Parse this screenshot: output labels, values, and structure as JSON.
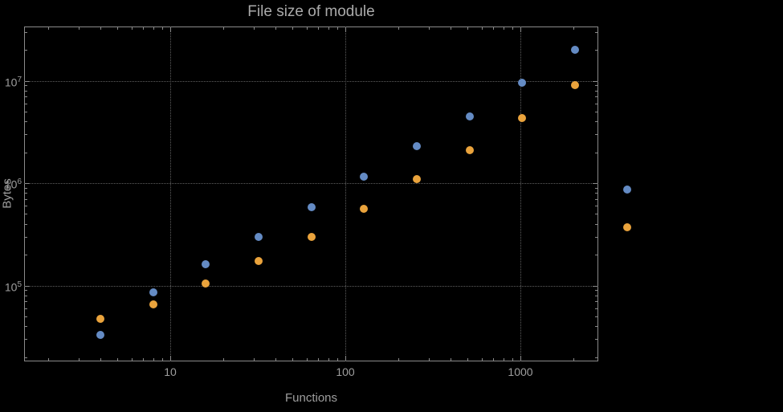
{
  "chart_data": {
    "type": "scatter",
    "title": "File size of module",
    "xlabel": "Functions",
    "ylabel": "Bytes",
    "x_scale": "log",
    "y_scale": "log",
    "grid": "major-dotted",
    "legend": "none",
    "frame": true,
    "x_ticks": [
      {
        "value": 10,
        "label": "10"
      },
      {
        "value": 100,
        "label": "100"
      },
      {
        "value": 1000,
        "label": "1000"
      }
    ],
    "y_ticks": [
      {
        "value": 100000,
        "base": "10",
        "exp": "5"
      },
      {
        "value": 1000000,
        "base": "10",
        "exp": "6"
      },
      {
        "value": 10000000,
        "base": "10",
        "exp": "7"
      }
    ],
    "x_range": [
      1.6,
      2600
    ],
    "y_range": [
      18000,
      34000000
    ],
    "series": [
      {
        "name": "blue",
        "color": "#648bc4",
        "marker": "circle",
        "points": [
          [
            4,
            33000
          ],
          [
            8,
            85000
          ],
          [
            16,
            160000
          ],
          [
            32,
            300000
          ],
          [
            64,
            580000
          ],
          [
            128,
            1150000
          ],
          [
            256,
            2300000
          ],
          [
            512,
            4500000
          ],
          [
            1024,
            9500000
          ],
          [
            2048,
            20000000
          ],
          [
            4096,
            870000
          ]
        ]
      },
      {
        "name": "orange",
        "color": "#eaa33c",
        "marker": "circle",
        "points": [
          [
            4,
            47000
          ],
          [
            8,
            65000
          ],
          [
            16,
            105000
          ],
          [
            32,
            175000
          ],
          [
            64,
            300000
          ],
          [
            128,
            560000
          ],
          [
            256,
            1100000
          ],
          [
            512,
            2100000
          ],
          [
            1024,
            4300000
          ],
          [
            2048,
            9000000
          ],
          [
            4096,
            370000
          ]
        ]
      }
    ],
    "colors": {
      "background": "#000000",
      "frame": "#8a8a8a",
      "grid": "#5e5e5e",
      "axis_text": "#9e9e9e",
      "title_text": "#aaaaaa"
    }
  }
}
